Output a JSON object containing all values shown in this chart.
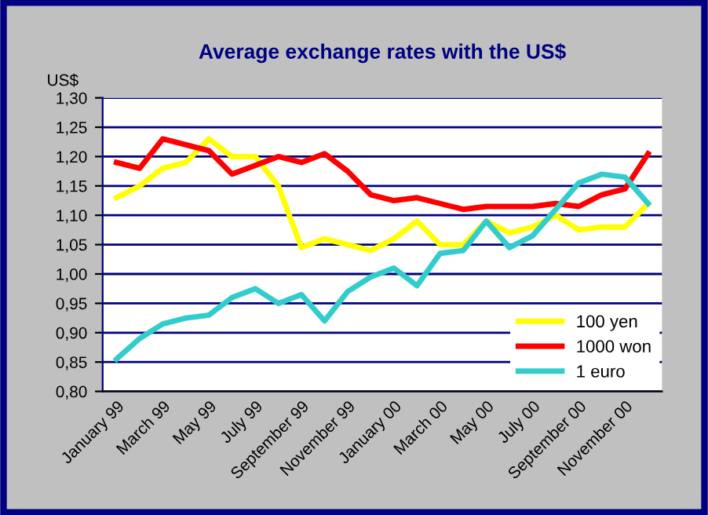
{
  "chart_data": {
    "type": "line",
    "title": "Average exchange rates with the US$",
    "ylabel": "US$",
    "categories": [
      "January 99",
      null,
      "March 99",
      null,
      "May 99",
      null,
      "July 99",
      null,
      "September 99",
      null,
      "November 99",
      null,
      "January 00",
      null,
      "March 00",
      null,
      "May 00",
      null,
      "July 00",
      null,
      "September 00",
      null,
      "November 00",
      null
    ],
    "series": [
      {
        "name": "100 yen",
        "color": "#ffff00",
        "values": [
          1.13,
          1.15,
          1.18,
          1.19,
          1.23,
          1.2,
          1.2,
          1.15,
          1.045,
          1.06,
          1.05,
          1.04,
          1.06,
          1.09,
          1.05,
          1.05,
          1.09,
          1.07,
          1.08,
          1.1,
          1.075,
          1.08,
          1.08,
          1.12
        ]
      },
      {
        "name": "1000 won",
        "color": "#ff0000",
        "values": [
          1.19,
          1.18,
          1.23,
          1.22,
          1.21,
          1.17,
          1.185,
          1.2,
          1.19,
          1.205,
          1.175,
          1.135,
          1.125,
          1.13,
          1.12,
          1.11,
          1.115,
          1.115,
          1.115,
          1.12,
          1.115,
          1.135,
          1.145,
          1.205
        ]
      },
      {
        "name": "1 euro",
        "color": "#33cccc",
        "values": [
          0.855,
          0.89,
          0.915,
          0.925,
          0.93,
          0.96,
          0.975,
          0.95,
          0.965,
          0.92,
          0.97,
          0.995,
          1.01,
          0.98,
          1.035,
          1.04,
          1.09,
          1.045,
          1.065,
          1.11,
          1.155,
          1.17,
          1.165,
          1.12
        ]
      }
    ],
    "ylim": [
      0.8,
      1.3
    ],
    "yticks": [
      {
        "value": 0.8,
        "label": "0,80"
      },
      {
        "value": 0.85,
        "label": "0,85"
      },
      {
        "value": 0.9,
        "label": "0,90"
      },
      {
        "value": 0.95,
        "label": "0,95"
      },
      {
        "value": 1.0,
        "label": "1,00"
      },
      {
        "value": 1.05,
        "label": "1,05"
      },
      {
        "value": 1.1,
        "label": "1,10"
      },
      {
        "value": 1.15,
        "label": "1,15"
      },
      {
        "value": 1.2,
        "label": "1,20"
      },
      {
        "value": 1.25,
        "label": "1,25"
      },
      {
        "value": 1.3,
        "label": "1,30"
      }
    ],
    "grid": "y",
    "legend": "bottom right",
    "marker": "none",
    "line_style": "solid"
  }
}
